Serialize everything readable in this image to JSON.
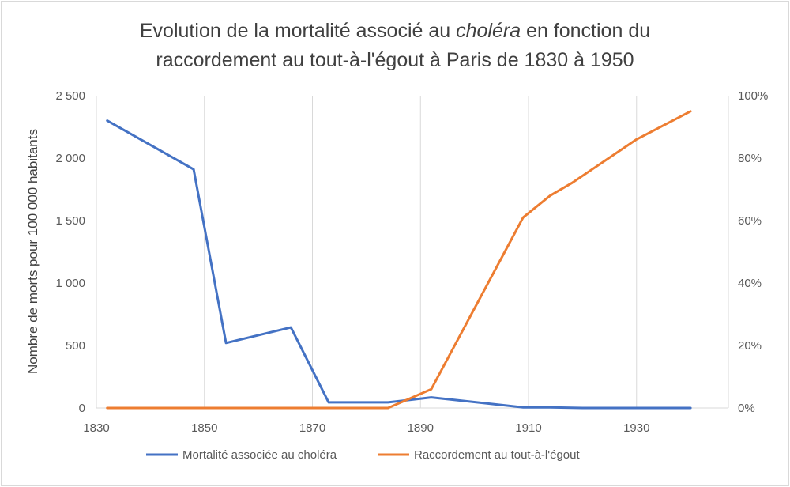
{
  "chart_data": {
    "type": "line",
    "title_line1_pre": "Evolution de la mortalité associé au ",
    "title_line1_em": "choléra",
    "title_line1_post": " en fonction du",
    "title_line2": "raccordement au tout-à-l'égout à Paris de 1830 à 1950",
    "ylabel": "Nombre de morts  pour 100 000 habitants",
    "xlim": [
      1830,
      1947
    ],
    "ylim": [
      0,
      2500
    ],
    "y2lim": [
      0,
      1
    ],
    "x_ticks": [
      1830,
      1850,
      1870,
      1890,
      1910,
      1930
    ],
    "x_tick_labels": [
      "1830",
      "1850",
      "1870",
      "1890",
      "1910",
      "1930"
    ],
    "y_ticks": [
      0,
      500,
      1000,
      1500,
      2000,
      2500
    ],
    "y_tick_labels": [
      "0",
      "500",
      "1 000",
      "1 500",
      "2 000",
      "2 500"
    ],
    "y2_ticks": [
      0,
      0.2,
      0.4,
      0.6,
      0.8,
      1.0
    ],
    "y2_tick_labels": [
      "0%",
      "20%",
      "40%",
      "60%",
      "80%",
      "100%"
    ],
    "grid": "vertical",
    "legend_position": "bottom",
    "series": [
      {
        "name": "Mortalité associée au choléra",
        "axis": "left",
        "color": "#4472c4",
        "x": [
          1832,
          1848,
          1854,
          1866,
          1873,
          1884,
          1892,
          1909,
          1914,
          1920,
          1930,
          1940
        ],
        "values": [
          2300,
          1910,
          520,
          645,
          45,
          45,
          85,
          5,
          5,
          0,
          0,
          0
        ]
      },
      {
        "name": "Raccordement au tout-à-l'égout",
        "axis": "right",
        "color": "#ed7d31",
        "x": [
          1832,
          1848,
          1854,
          1866,
          1873,
          1884,
          1892,
          1909,
          1914,
          1918,
          1930,
          1940
        ],
        "values": [
          0,
          0,
          0,
          0,
          0,
          0,
          0.06,
          0.61,
          0.68,
          0.72,
          0.86,
          0.95
        ]
      }
    ]
  }
}
